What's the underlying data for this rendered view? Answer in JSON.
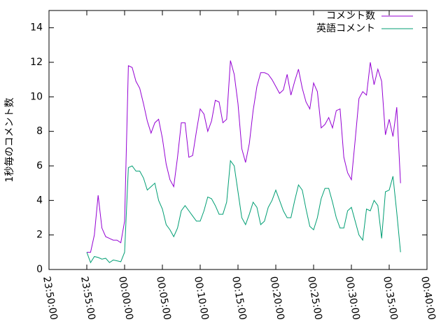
{
  "chart_data": {
    "type": "line",
    "y_label": "1秒毎のコメント数",
    "x": [
      "23:55:00",
      "23:55:30",
      "23:56:00",
      "23:56:30",
      "23:57:00",
      "23:57:30",
      "23:58:00",
      "23:58:30",
      "23:59:00",
      "23:59:30",
      "00:00:00",
      "00:00:30",
      "00:01:00",
      "00:01:30",
      "00:02:00",
      "00:02:30",
      "00:03:00",
      "00:03:30",
      "00:04:00",
      "00:04:30",
      "00:05:00",
      "00:05:30",
      "00:06:00",
      "00:06:30",
      "00:07:00",
      "00:07:30",
      "00:08:00",
      "00:08:30",
      "00:09:00",
      "00:09:30",
      "00:10:00",
      "00:10:30",
      "00:11:00",
      "00:11:30",
      "00:12:00",
      "00:12:30",
      "00:13:00",
      "00:13:30",
      "00:14:00",
      "00:14:30",
      "00:15:00",
      "00:15:30",
      "00:16:00",
      "00:16:30",
      "00:17:00",
      "00:17:30",
      "00:18:00",
      "00:18:30",
      "00:19:00",
      "00:19:30",
      "00:20:00",
      "00:20:30",
      "00:21:00",
      "00:21:30",
      "00:22:00",
      "00:22:30",
      "00:23:00",
      "00:23:30",
      "00:24:00",
      "00:24:30",
      "00:25:00",
      "00:25:30",
      "00:26:00",
      "00:26:30",
      "00:27:00",
      "00:27:30",
      "00:28:00",
      "00:28:30",
      "00:29:00",
      "00:29:30",
      "00:30:00",
      "00:30:30",
      "00:31:00",
      "00:31:30",
      "00:32:00",
      "00:32:30",
      "00:33:00",
      "00:33:30",
      "00:34:00",
      "00:34:30",
      "00:35:00",
      "00:35:30",
      "00:36:00",
      "00:36:30"
    ],
    "series": [
      {
        "name": "コメント数",
        "color": "#9400d3",
        "values": [
          1.0,
          1.0,
          2.0,
          4.3,
          2.4,
          1.9,
          1.8,
          1.7,
          1.7,
          1.55,
          2.8,
          11.8,
          11.7,
          10.9,
          10.5,
          9.6,
          8.6,
          7.9,
          8.5,
          8.7,
          7.6,
          6.1,
          5.2,
          4.8,
          6.5,
          8.5,
          8.5,
          6.5,
          6.6,
          8.0,
          9.3,
          9.0,
          8.0,
          8.6,
          9.8,
          9.7,
          8.5,
          8.7,
          12.1,
          11.3,
          9.6,
          7.0,
          6.2,
          7.3,
          9.2,
          10.6,
          11.4,
          11.4,
          11.3,
          11.0,
          10.6,
          10.2,
          10.4,
          11.3,
          10.1,
          10.9,
          11.6,
          10.5,
          9.7,
          9.3,
          10.8,
          10.3,
          8.2,
          8.4,
          8.8,
          8.2,
          9.2,
          9.3,
          6.5,
          5.6,
          5.2,
          7.5,
          9.9,
          10.3,
          10.1,
          12.0,
          10.7,
          11.6,
          10.9,
          7.8,
          8.7,
          7.7,
          9.4,
          5.0
        ]
      },
      {
        "name": "英語コメント",
        "color": "#009e73",
        "values": [
          1.0,
          0.4,
          0.75,
          0.7,
          0.6,
          0.65,
          0.4,
          0.55,
          0.5,
          0.45,
          1.0,
          5.9,
          6.0,
          5.7,
          5.7,
          5.3,
          4.6,
          4.8,
          5.0,
          4.0,
          3.5,
          2.6,
          2.3,
          1.9,
          2.4,
          3.4,
          3.7,
          3.4,
          3.1,
          2.8,
          2.8,
          3.4,
          4.2,
          4.1,
          3.7,
          3.2,
          3.2,
          3.9,
          6.3,
          6.0,
          4.5,
          3.0,
          2.6,
          3.2,
          3.9,
          3.6,
          2.6,
          2.8,
          3.6,
          4.0,
          4.6,
          4.0,
          3.4,
          3.0,
          3.0,
          4.0,
          4.9,
          4.6,
          3.5,
          2.5,
          2.3,
          3.0,
          4.1,
          4.7,
          4.7,
          3.9,
          3.0,
          2.4,
          2.4,
          3.4,
          3.6,
          2.8,
          2.0,
          1.7,
          3.5,
          3.4,
          4.0,
          3.7,
          1.8,
          4.5,
          4.6,
          5.4,
          3.3,
          1.0
        ]
      }
    ],
    "xlim": [
      "23:50:00",
      "00:40:00"
    ],
    "xticks": [
      "23:50:00",
      "23:55:00",
      "00:00:00",
      "00:05:00",
      "00:10:00",
      "00:15:00",
      "00:20:00",
      "00:25:00",
      "00:30:00",
      "00:35:00",
      "00:40:00"
    ],
    "ylim": [
      0,
      15
    ],
    "yticks": [
      0,
      2,
      4,
      6,
      8,
      10,
      12,
      14
    ],
    "grid": false,
    "legend": "top-right"
  }
}
